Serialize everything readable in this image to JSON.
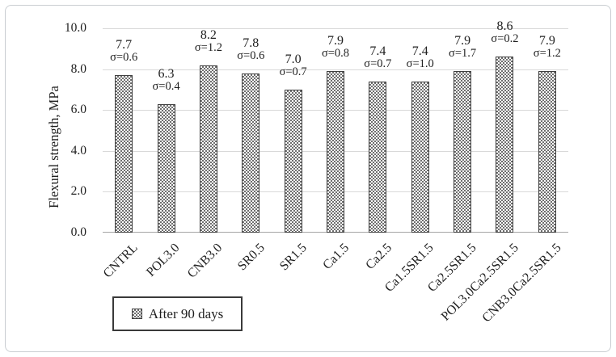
{
  "figure": {
    "background": "#ffffff",
    "frame_border_color": "#c9cdd1"
  },
  "chart_data": {
    "type": "bar",
    "title": "",
    "xlabel": "",
    "ylabel": "Flexural strength, MPa",
    "ylim": [
      0,
      10
    ],
    "yticks": [
      "0.0",
      "2.0",
      "4.0",
      "6.0",
      "8.0",
      "10.0"
    ],
    "grid": true,
    "legend": {
      "label": "After 90 days",
      "position": "bottom"
    },
    "categories": [
      "CNTRL",
      "POL3.0",
      "CNB3.0",
      "SR0.5",
      "SR1.5",
      "Ca1.5",
      "Ca2.5",
      "Ca1.5SR1.5",
      "Ca2.5SR1.5",
      "POL3.0Ca2.5SR1.5",
      "CNB3.0Ca2.5SR1.5"
    ],
    "series": [
      {
        "name": "After 90 days",
        "values": [
          7.7,
          6.3,
          8.2,
          7.8,
          7.0,
          7.9,
          7.4,
          7.4,
          7.9,
          8.6,
          7.9
        ],
        "sigma": [
          0.6,
          0.4,
          1.2,
          0.6,
          0.7,
          0.8,
          0.7,
          1.0,
          1.7,
          0.2,
          1.2
        ]
      }
    ],
    "value_labels": [
      "7.7",
      "6.3",
      "8.2",
      "7.8",
      "7.0",
      "7.9",
      "7.4",
      "7.4",
      "7.9",
      "8.6",
      "7.9"
    ],
    "sigma_labels": [
      "σ=0.6",
      "σ=0.4",
      "σ=1.2",
      "σ=0.6",
      "σ=0.7",
      "σ=0.8",
      "σ=0.7",
      "σ=1.0",
      "σ=1.7",
      "σ=0.2",
      "σ=1.2"
    ],
    "colors": {
      "pattern_dark": "#6f6f6f",
      "pattern_light": "#ffffff",
      "bar_border": "#3f3f3f",
      "gridline": "#d9d9d9",
      "axis_line": "#a6a6a6",
      "text": "#1f1f1f",
      "legend_border": "#3a3a3a",
      "frame_border": "#c9cdd1"
    }
  }
}
